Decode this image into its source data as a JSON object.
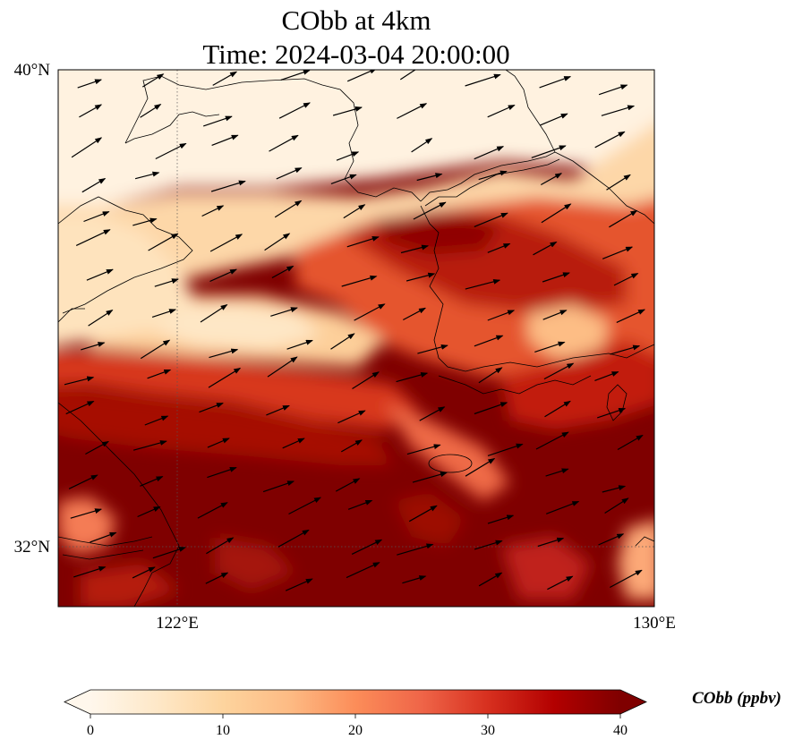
{
  "title": {
    "line1": "CObb at 4km",
    "line2": "Time: 2024-03-04 20:00:00"
  },
  "map": {
    "lon_range": [
      120.2,
      130.0
    ],
    "lat_range": [
      31.1,
      40.0
    ],
    "lat_ticks": [
      {
        "value": 40,
        "label": "40°N"
      },
      {
        "value": 32,
        "label": "32°N"
      }
    ],
    "lon_ticks": [
      {
        "value": 122,
        "label": "122°E"
      },
      {
        "value": 130,
        "label": "130°E"
      }
    ],
    "gridlines": "dotted at tick values",
    "colormap": "OrRd",
    "features": [
      "coastlines",
      "wind vectors"
    ]
  },
  "colorbar": {
    "label": "CObb (ppbv)",
    "ticks": [
      0,
      10,
      20,
      30,
      40
    ],
    "range": [
      0,
      40
    ],
    "extend": "both",
    "colors": [
      "#fff7ec",
      "#fee8c8",
      "#fdd49e",
      "#fdbb84",
      "#fc8d59",
      "#ef6548",
      "#d7301f",
      "#b30000",
      "#7f0000"
    ]
  }
}
